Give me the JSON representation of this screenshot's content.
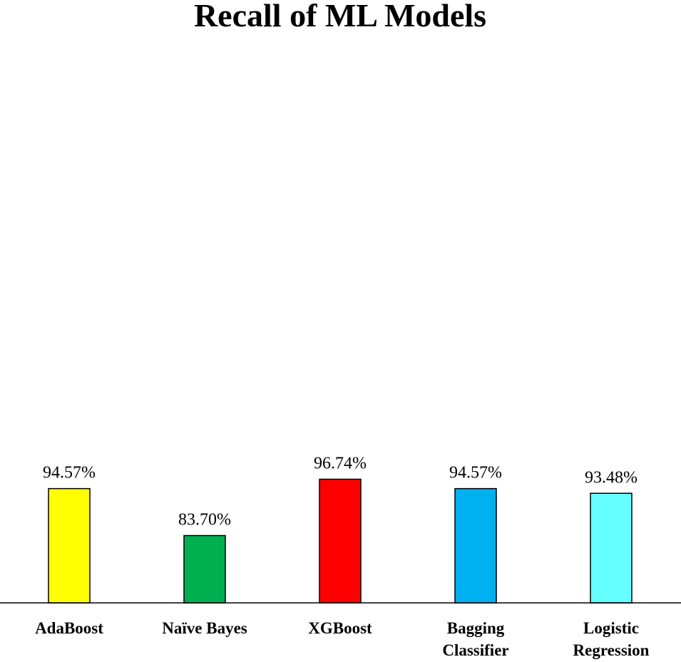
{
  "chart_data": {
    "type": "bar",
    "title": "Recall of ML Models",
    "xlabel": "",
    "ylabel": "",
    "ylim": [
      0,
      100
    ],
    "grid": false,
    "categories": [
      [
        "AdaBoost"
      ],
      [
        "Naïve Bayes"
      ],
      [
        "XGBoost"
      ],
      [
        "Bagging",
        "Classifier"
      ],
      [
        "Logistic",
        "Regression"
      ]
    ],
    "values": [
      94.57,
      83.7,
      96.74,
      94.57,
      93.48
    ],
    "value_labels": [
      "94.57%",
      "83.70%",
      "96.74%",
      "94.57%",
      "93.48%"
    ],
    "colors": [
      "#FFFF00",
      "#00B050",
      "#FF0000",
      "#00B0F0",
      "#66FFFF"
    ]
  }
}
